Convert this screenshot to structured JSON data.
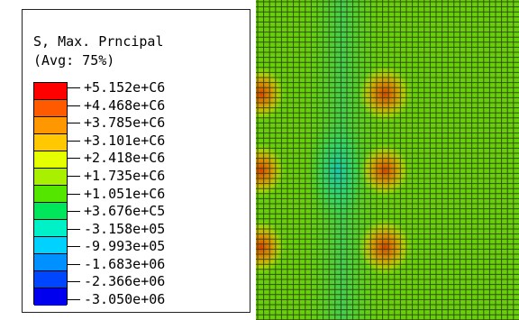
{
  "legend": {
    "title": "S, Max. Prncipal",
    "subtitle": "(Avg: 75%)",
    "values": [
      "+5.152e+C6",
      "+4.468e+C6",
      "+3.785e+C6",
      "+3.101e+C6",
      "+2.418e+C6",
      "+1.735e+C6",
      "+1.051e+C6",
      "+3.676e+C5",
      "-3.158e+05",
      "-9.993e+05",
      "-1.683e+06",
      "-2.366e+06",
      "-3.050e+06"
    ],
    "band_colors": [
      "#ff0000",
      "#ff5a00",
      "#ff9800",
      "#ffc800",
      "#e6ff00",
      "#a8f000",
      "#55e600",
      "#00e65a",
      "#00f0c8",
      "#00d2ff",
      "#0090ff",
      "#0046ff",
      "#0000ee"
    ]
  },
  "contour_plot": {
    "mesh_color": "#2a3a08",
    "hotspots_color": "#e04a00",
    "coldspot_color": "#20d8b0",
    "base_color": "#5fcc0a"
  }
}
